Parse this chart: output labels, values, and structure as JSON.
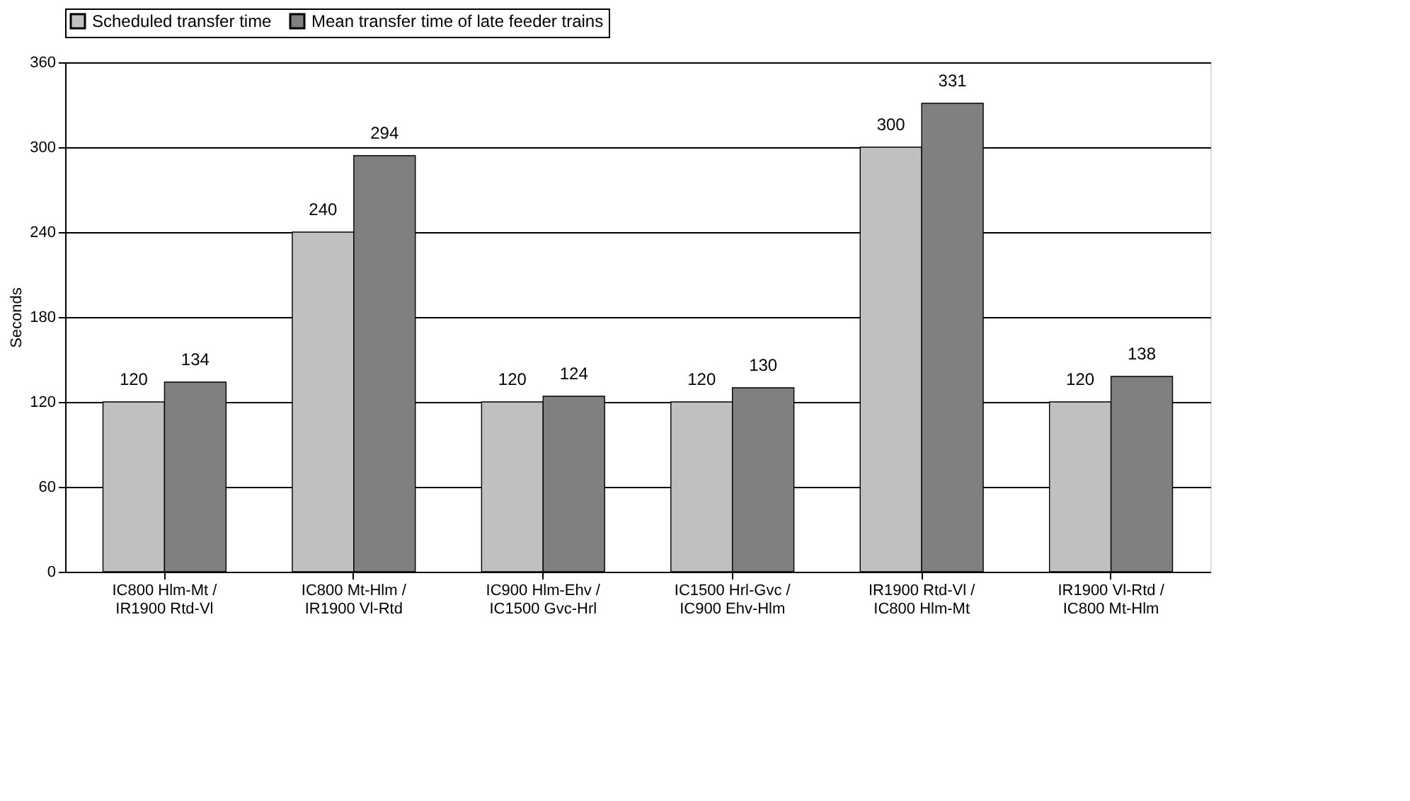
{
  "chart_data": {
    "type": "bar",
    "categories": [
      "IC800 Hlm-Mt / IR1900 Rtd-Vl",
      "IC800 Mt-Hlm / IR1900 Vl-Rtd",
      "IC900 Hlm-Ehv / IC1500 Gvc-Hrl",
      "IC1500 Hrl-Gvc / IC900 Ehv-Hlm",
      "IR1900 Rtd-Vl / IC800 Hlm-Mt",
      "IR1900 Vl-Rtd / IC800 Mt-Hlm"
    ],
    "series": [
      {
        "name": "Scheduled transfer time",
        "color": "#c0c0c0",
        "values": [
          120,
          240,
          120,
          120,
          300,
          120
        ]
      },
      {
        "name": "Mean transfer time of late feeder trains",
        "color": "#808080",
        "values": [
          134,
          294,
          124,
          130,
          331,
          138
        ]
      }
    ],
    "ylabel": "Seconds",
    "ylim": [
      0,
      360
    ],
    "yticks": [
      0,
      60,
      120,
      180,
      240,
      300,
      360
    ],
    "grid": "y",
    "legend": "top",
    "data_labels": true
  }
}
